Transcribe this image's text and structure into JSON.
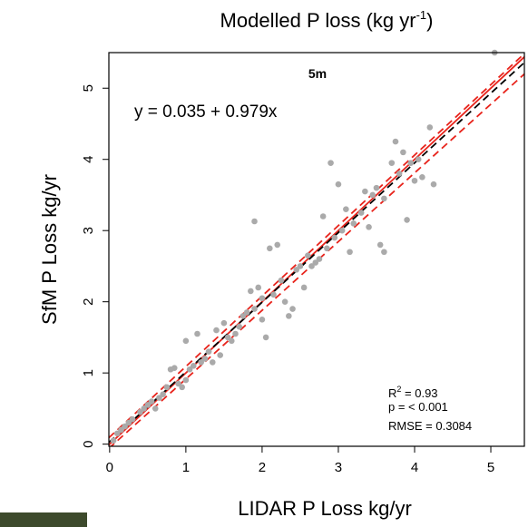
{
  "chart_data": {
    "type": "scatter",
    "title": [
      "Modelled P loss (kg yr",
      "-1",
      ")"
    ],
    "x_label": "LIDAR P Loss kg/yr",
    "y_label": "SfM P Loss kg/yr",
    "annotations": {
      "panel": "5m",
      "equation": "y = 0.035 + 0.979x",
      "r2": [
        "R",
        "2",
        " = 0.93"
      ],
      "p": "p = < 0.001",
      "rmse": "RMSE = 0.3084"
    },
    "xlim": [
      -0.01,
      5.44
    ],
    "ylim": [
      -0.03,
      5.5
    ],
    "xticks": [
      0,
      1,
      2,
      3,
      4,
      5
    ],
    "yticks": [
      0,
      1,
      2,
      3,
      4,
      5
    ],
    "point_color": "#aaaaaa",
    "lines": [
      {
        "intercept": 0,
        "slope": 1,
        "color": "#e8231b",
        "dashed": false
      },
      {
        "intercept": 0.1,
        "slope": 0.99,
        "color": "#e8231b",
        "dashed": true
      },
      {
        "intercept": -0.05,
        "slope": 0.965,
        "color": "#e8231b",
        "dashed": true
      },
      {
        "intercept": 0.035,
        "slope": 0.979,
        "color": "#000000",
        "dashed": true
      }
    ],
    "x": [
      0.05,
      0.1,
      0.15,
      0.2,
      0.25,
      0.3,
      0.4,
      0.45,
      0.5,
      0.55,
      0.6,
      0.65,
      0.7,
      0.75,
      0.8,
      0.85,
      0.9,
      0.95,
      1.0,
      1.0,
      1.05,
      1.1,
      1.15,
      1.2,
      1.25,
      1.3,
      1.35,
      1.4,
      1.45,
      1.5,
      1.55,
      1.6,
      1.65,
      1.7,
      1.75,
      1.8,
      1.85,
      1.9,
      1.9,
      1.95,
      2.0,
      2.0,
      2.05,
      2.1,
      2.15,
      2.2,
      2.25,
      2.3,
      2.35,
      2.4,
      2.45,
      2.5,
      2.55,
      2.6,
      2.65,
      2.7,
      2.75,
      2.8,
      2.85,
      2.9,
      2.95,
      3.0,
      3.05,
      3.1,
      3.15,
      3.2,
      3.3,
      3.35,
      3.4,
      3.45,
      3.5,
      3.55,
      3.6,
      3.6,
      3.7,
      3.75,
      3.8,
      3.85,
      3.9,
      3.95,
      4.0,
      4.05,
      4.1,
      4.2,
      4.25,
      5.05
    ],
    "values": [
      0.05,
      0.15,
      0.2,
      0.25,
      0.3,
      0.35,
      0.45,
      0.5,
      0.55,
      0.6,
      0.5,
      0.65,
      0.7,
      0.8,
      1.05,
      1.07,
      0.85,
      0.8,
      0.9,
      1.45,
      1.05,
      1.1,
      1.55,
      1.15,
      1.2,
      1.3,
      1.15,
      1.6,
      1.25,
      1.7,
      1.5,
      1.45,
      1.55,
      1.65,
      1.8,
      1.85,
      2.15,
      3.13,
      1.9,
      2.2,
      2.05,
      1.75,
      1.5,
      2.75,
      2.1,
      2.8,
      2.3,
      2.0,
      1.8,
      1.9,
      2.45,
      2.5,
      2.2,
      2.65,
      2.5,
      2.55,
      2.6,
      3.2,
      2.75,
      3.95,
      2.9,
      3.65,
      3.0,
      3.3,
      2.7,
      3.1,
      3.25,
      3.55,
      3.05,
      3.5,
      3.6,
      2.8,
      3.45,
      2.7,
      3.95,
      4.25,
      3.8,
      4.1,
      3.15,
      3.95,
      3.7,
      4.0,
      3.75,
      4.45,
      3.65,
      5.5
    ]
  }
}
